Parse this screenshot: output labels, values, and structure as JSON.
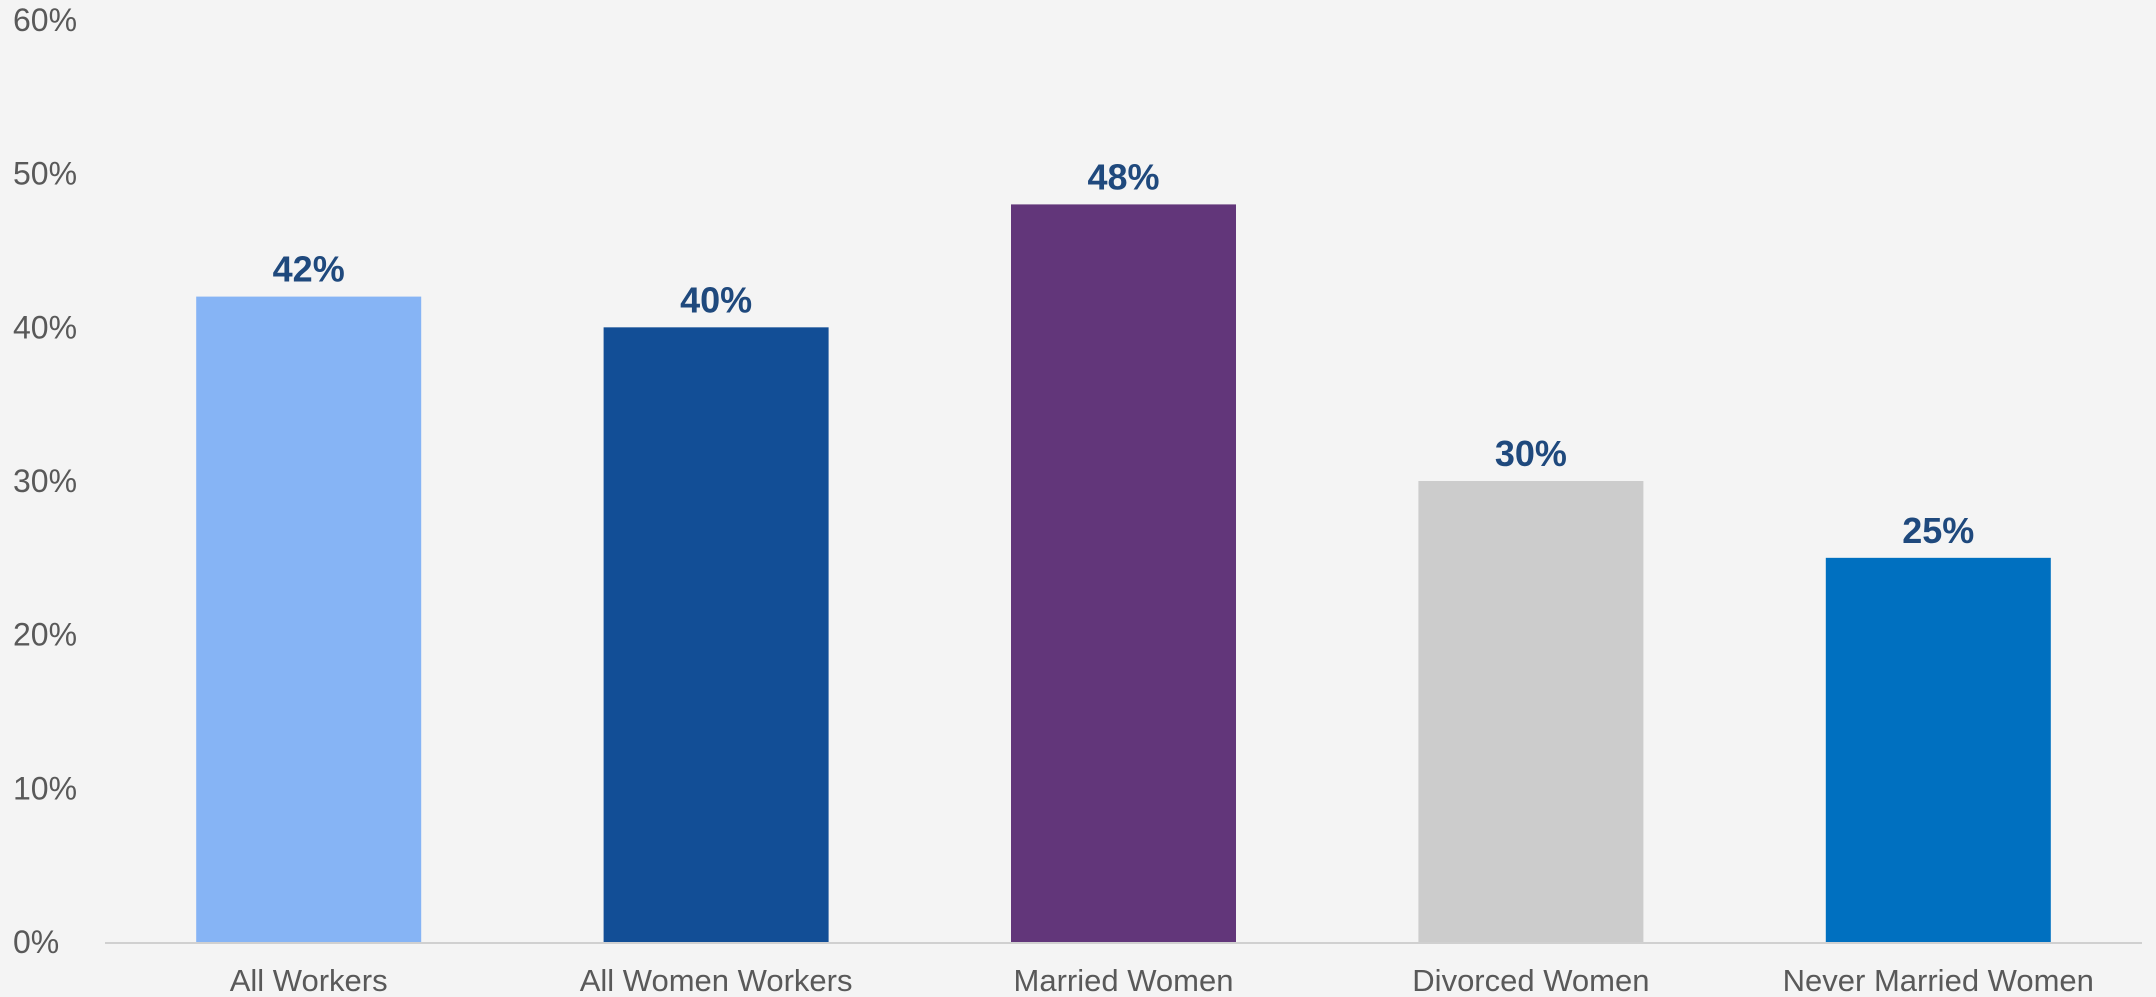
{
  "chart_data": {
    "type": "bar",
    "categories": [
      "All Workers",
      "All Women Workers",
      "Married Women",
      "Divorced Women",
      "Never Married Women"
    ],
    "values": [
      42,
      40,
      48,
      30,
      25
    ],
    "data_labels": [
      "42%",
      "40%",
      "48%",
      "30%",
      "25%"
    ],
    "bar_colors": [
      "#86b4f5",
      "#124e96",
      "#62367a",
      "#cccccc",
      "#0070c0"
    ],
    "y_ticks": [
      0,
      10,
      20,
      30,
      40,
      50,
      60
    ],
    "y_tick_labels": [
      "0%",
      "10%",
      "20%",
      "30%",
      "40%",
      "50%",
      "60%"
    ],
    "ylim": [
      0,
      60
    ],
    "grid": false,
    "legend": "none",
    "title": "",
    "xlabel": "",
    "ylabel": ""
  },
  "colors": {
    "background": "#f4f4f4",
    "label": "#1f497d",
    "tick": "#595959",
    "baseline": "#d0d0d0"
  }
}
